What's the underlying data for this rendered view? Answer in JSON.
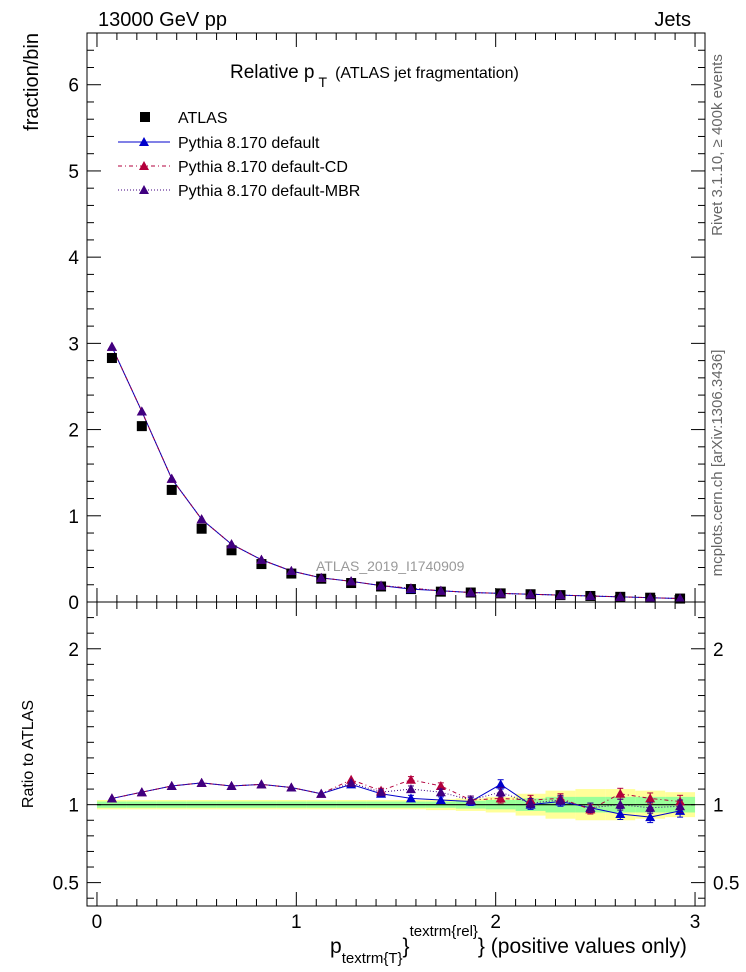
{
  "header": {
    "left": "13000 GeV pp",
    "right": "Jets",
    "title_main": "Relative p",
    "title_sub": "T",
    "title_paren": "(ATLAS jet fragmentation)",
    "watermark": "ATLAS_2019_I1740909"
  },
  "side_labels": {
    "rivet": "Rivet 3.1.10, ≥ 400k events",
    "mcplots": "mcplots.cern.ch [arXiv:1306.3436]"
  },
  "axes": {
    "main_ylabel": "fraction/bin",
    "ratio_ylabel": "Ratio to ATLAS",
    "xlabel_p": "p",
    "xlabel_sub": "textrm{T}",
    "xlabel_sup": "textrm{rel}",
    "xlabel_rest": "} (positive values only)",
    "xlabel_brace": "}"
  },
  "legend": {
    "atlas": "ATLAS",
    "default": "Pythia 8.170 default",
    "cd": "Pythia 8.170 default-CD",
    "mbr": "Pythia 8.170 default-MBR"
  },
  "colors": {
    "atlas": "#000000",
    "default": "#0000cc",
    "cd": "#b3003c",
    "mbr": "#400080",
    "band_inner": "#99ff99",
    "band_outer": "#ffff99"
  },
  "chart_data": [
    {
      "type": "scatter",
      "panel": "main",
      "xlim": [
        -0.05,
        3.05
      ],
      "ylim": [
        0,
        6.6
      ],
      "yticks": [
        0,
        1,
        2,
        3,
        4,
        5,
        6
      ],
      "x": [
        0.075,
        0.225,
        0.375,
        0.525,
        0.675,
        0.825,
        0.975,
        1.125,
        1.275,
        1.425,
        1.575,
        1.725,
        1.875,
        2.025,
        2.175,
        2.325,
        2.475,
        2.625,
        2.775,
        2.925
      ],
      "series": [
        {
          "name": "ATLAS",
          "values": [
            2.83,
            2.04,
            1.3,
            0.85,
            0.6,
            0.44,
            0.33,
            0.27,
            0.22,
            0.18,
            0.15,
            0.12,
            0.11,
            0.1,
            0.09,
            0.08,
            0.07,
            0.06,
            0.05,
            0.04
          ]
        },
        {
          "name": "Pythia 8.170 default",
          "values": [
            2.96,
            2.21,
            1.43,
            0.96,
            0.67,
            0.49,
            0.36,
            0.28,
            0.24,
            0.19,
            0.15,
            0.13,
            0.11,
            0.1,
            0.09,
            0.08,
            0.07,
            0.06,
            0.05,
            0.04
          ]
        },
        {
          "name": "Pythia 8.170 default-CD",
          "values": [
            2.96,
            2.21,
            1.43,
            0.96,
            0.67,
            0.49,
            0.36,
            0.28,
            0.24,
            0.19,
            0.16,
            0.13,
            0.11,
            0.1,
            0.09,
            0.08,
            0.07,
            0.06,
            0.05,
            0.04
          ]
        },
        {
          "name": "Pythia 8.170 default-MBR",
          "values": [
            2.96,
            2.21,
            1.43,
            0.96,
            0.67,
            0.49,
            0.36,
            0.28,
            0.24,
            0.19,
            0.16,
            0.13,
            0.11,
            0.1,
            0.09,
            0.08,
            0.07,
            0.06,
            0.05,
            0.04
          ]
        }
      ]
    },
    {
      "type": "line",
      "panel": "ratio",
      "xlim": [
        -0.05,
        3.05
      ],
      "ylim": [
        0.35,
        2.3
      ],
      "yticks": [
        0.5,
        1,
        2
      ],
      "xticks": [
        0,
        1,
        2,
        3
      ],
      "x": [
        0.075,
        0.225,
        0.375,
        0.525,
        0.675,
        0.825,
        0.975,
        1.125,
        1.275,
        1.425,
        1.575,
        1.725,
        1.875,
        2.025,
        2.175,
        2.325,
        2.475,
        2.625,
        2.775,
        2.925
      ],
      "band_inner": [
        0.02,
        0.02,
        0.02,
        0.02,
        0.02,
        0.02,
        0.02,
        0.02,
        0.02,
        0.02,
        0.02,
        0.02,
        0.025,
        0.03,
        0.04,
        0.05,
        0.05,
        0.05,
        0.05,
        0.05
      ],
      "band_outer": [
        0.03,
        0.03,
        0.03,
        0.03,
        0.03,
        0.03,
        0.03,
        0.03,
        0.03,
        0.03,
        0.03,
        0.035,
        0.04,
        0.05,
        0.07,
        0.09,
        0.1,
        0.1,
        0.09,
        0.08
      ],
      "series": [
        {
          "name": "Pythia 8.170 default",
          "values": [
            1.04,
            1.08,
            1.12,
            1.14,
            1.12,
            1.13,
            1.11,
            1.07,
            1.13,
            1.07,
            1.04,
            1.03,
            1.02,
            1.13,
            1.0,
            1.02,
            0.98,
            0.94,
            0.92,
            0.96
          ],
          "err": [
            0.01,
            0.01,
            0.01,
            0.01,
            0.01,
            0.01,
            0.01,
            0.01,
            0.01,
            0.015,
            0.02,
            0.02,
            0.025,
            0.03,
            0.03,
            0.03,
            0.03,
            0.035,
            0.035,
            0.04
          ]
        },
        {
          "name": "Pythia 8.170 default-CD",
          "values": [
            1.04,
            1.08,
            1.12,
            1.14,
            1.12,
            1.13,
            1.11,
            1.07,
            1.16,
            1.09,
            1.16,
            1.12,
            1.03,
            1.04,
            1.03,
            1.04,
            0.97,
            1.07,
            1.04,
            1.02
          ],
          "err": [
            0.01,
            0.01,
            0.01,
            0.01,
            0.01,
            0.01,
            0.01,
            0.01,
            0.01,
            0.015,
            0.02,
            0.02,
            0.025,
            0.03,
            0.03,
            0.03,
            0.03,
            0.035,
            0.035,
            0.04
          ]
        },
        {
          "name": "Pythia 8.170 default-MBR",
          "values": [
            1.04,
            1.08,
            1.12,
            1.14,
            1.12,
            1.13,
            1.11,
            1.07,
            1.14,
            1.08,
            1.1,
            1.08,
            1.03,
            1.08,
            1.01,
            1.03,
            0.98,
            1.0,
            0.98,
            0.99
          ],
          "err": [
            0.01,
            0.01,
            0.01,
            0.01,
            0.01,
            0.01,
            0.01,
            0.01,
            0.01,
            0.015,
            0.02,
            0.02,
            0.025,
            0.03,
            0.03,
            0.03,
            0.03,
            0.035,
            0.035,
            0.04
          ]
        }
      ]
    }
  ]
}
